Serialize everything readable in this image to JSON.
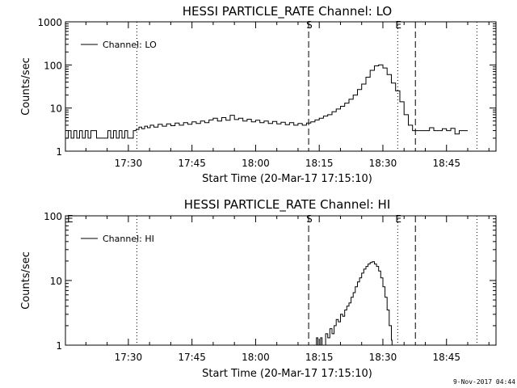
{
  "timestamp": "9-Nov-2017 04:44",
  "chart_data": [
    {
      "type": "line",
      "title": "HESSI PARTICLE_RATE Channel: LO",
      "ylabel": "Counts/sec",
      "xlabel": "Start Time (20-Mar-17 17:15:10)",
      "yscale": "log",
      "ylim": [
        1,
        1000
      ],
      "xlim": [
        "17:15:10",
        "18:56:40"
      ],
      "y_tick_labels": [
        "1",
        "10",
        "100",
        "1000"
      ],
      "x_tick_labels": [
        "17:30",
        "17:45",
        "18:00",
        "18:15",
        "18:30",
        "18:45"
      ],
      "legend": {
        "label": "Channel: LO",
        "placement": "top-left"
      },
      "grid": false,
      "markers": [
        {
          "time": "17:32:00",
          "style": "dotted",
          "label": ""
        },
        {
          "time": "18:12:30",
          "style": "dashed",
          "label": "S"
        },
        {
          "time": "18:33:30",
          "style": "dotted",
          "label": "E"
        },
        {
          "time": "18:37:40",
          "style": "dashed",
          "label": ""
        },
        {
          "time": "18:52:10",
          "style": "dotted",
          "label": ""
        }
      ],
      "series": [
        {
          "name": "Channel: LO",
          "points": [
            [
              "17:15:10",
              2.0
            ],
            [
              "17:15:50",
              3.0
            ],
            [
              "17:16:30",
              2.0
            ],
            [
              "17:17:10",
              3.0
            ],
            [
              "17:17:50",
              2.0
            ],
            [
              "17:18:30",
              3.0
            ],
            [
              "17:19:10",
              2.0
            ],
            [
              "17:19:50",
              3.0
            ],
            [
              "17:20:30",
              2.0
            ],
            [
              "17:21:10",
              3.0
            ],
            [
              "17:21:50",
              3.0
            ],
            [
              "17:22:30",
              2.0
            ],
            [
              "17:23:30",
              2.0
            ],
            [
              "17:24:30",
              2.0
            ],
            [
              "17:25:10",
              3.0
            ],
            [
              "17:25:50",
              2.0
            ],
            [
              "17:26:30",
              3.0
            ],
            [
              "17:27:10",
              2.0
            ],
            [
              "17:27:50",
              3.0
            ],
            [
              "17:28:30",
              2.0
            ],
            [
              "17:29:10",
              3.0
            ],
            [
              "17:29:50",
              2.0
            ],
            [
              "17:30:30",
              2.0
            ],
            [
              "17:31:10",
              3.0
            ],
            [
              "17:31:50",
              3.2
            ],
            [
              "17:32:30",
              3.6
            ],
            [
              "17:33:10",
              3.3
            ],
            [
              "17:33:50",
              3.8
            ],
            [
              "17:34:30",
              3.5
            ],
            [
              "17:35:10",
              4.0
            ],
            [
              "17:36:00",
              3.6
            ],
            [
              "17:37:00",
              4.2
            ],
            [
              "17:38:00",
              3.8
            ],
            [
              "17:39:00",
              4.3
            ],
            [
              "17:40:00",
              3.9
            ],
            [
              "17:41:00",
              4.5
            ],
            [
              "17:42:00",
              4.0
            ],
            [
              "17:43:00",
              4.6
            ],
            [
              "17:44:00",
              4.2
            ],
            [
              "17:45:00",
              4.8
            ],
            [
              "17:46:00",
              4.4
            ],
            [
              "17:47:00",
              5.0
            ],
            [
              "17:48:00",
              4.6
            ],
            [
              "17:49:00",
              5.3
            ],
            [
              "17:50:00",
              5.8
            ],
            [
              "17:51:00",
              5.0
            ],
            [
              "17:52:00",
              6.0
            ],
            [
              "17:53:00",
              5.2
            ],
            [
              "17:54:00",
              6.8
            ],
            [
              "17:55:00",
              5.4
            ],
            [
              "17:56:00",
              5.8
            ],
            [
              "17:57:00",
              5.0
            ],
            [
              "17:58:00",
              5.5
            ],
            [
              "17:59:00",
              4.8
            ],
            [
              "18:00:00",
              5.2
            ],
            [
              "18:01:00",
              4.6
            ],
            [
              "18:02:00",
              5.0
            ],
            [
              "18:03:00",
              4.4
            ],
            [
              "18:04:00",
              4.9
            ],
            [
              "18:05:00",
              4.3
            ],
            [
              "18:06:00",
              4.7
            ],
            [
              "18:07:00",
              4.1
            ],
            [
              "18:08:00",
              4.6
            ],
            [
              "18:09:00",
              4.0
            ],
            [
              "18:10:00",
              4.4
            ],
            [
              "18:11:00",
              4.0
            ],
            [
              "18:12:00",
              4.5
            ],
            [
              "18:13:00",
              4.8
            ],
            [
              "18:14:00",
              5.3
            ],
            [
              "18:15:00",
              5.8
            ],
            [
              "18:16:00",
              6.5
            ],
            [
              "18:17:00",
              7.0
            ],
            [
              "18:18:00",
              8.2
            ],
            [
              "18:19:00",
              9.5
            ],
            [
              "18:20:00",
              11.0
            ],
            [
              "18:21:00",
              13.0
            ],
            [
              "18:22:00",
              16.0
            ],
            [
              "18:23:00",
              20.0
            ],
            [
              "18:24:00",
              27.0
            ],
            [
              "18:25:00",
              36.0
            ],
            [
              "18:26:00",
              52.0
            ],
            [
              "18:27:00",
              75.0
            ],
            [
              "18:28:00",
              95.0
            ],
            [
              "18:29:00",
              100.0
            ],
            [
              "18:30:00",
              85.0
            ],
            [
              "18:31:00",
              60.0
            ],
            [
              "18:32:00",
              38.0
            ],
            [
              "18:33:00",
              25.0
            ],
            [
              "18:34:00",
              14.0
            ],
            [
              "18:35:00",
              7.0
            ],
            [
              "18:36:00",
              4.0
            ],
            [
              "18:37:00",
              3.0
            ],
            [
              "18:38:00",
              3.0
            ],
            [
              "18:39:00",
              3.0
            ],
            [
              "18:40:00",
              3.0
            ],
            [
              "18:41:00",
              3.5
            ],
            [
              "18:42:00",
              3.0
            ],
            [
              "18:43:00",
              3.0
            ],
            [
              "18:44:00",
              3.3
            ],
            [
              "18:45:00",
              3.0
            ],
            [
              "18:46:00",
              3.4
            ],
            [
              "18:47:00",
              2.5
            ],
            [
              "18:48:00",
              3.0
            ],
            [
              "18:49:00",
              3.0
            ],
            [
              "18:50:00",
              3.0
            ]
          ]
        }
      ]
    },
    {
      "type": "line",
      "title": "HESSI PARTICLE_RATE Channel: HI",
      "ylabel": "Counts/sec",
      "xlabel": "Start Time (20-Mar-17 17:15:10)",
      "yscale": "log",
      "ylim": [
        1,
        100
      ],
      "xlim": [
        "17:15:10",
        "18:56:40"
      ],
      "y_tick_labels": [
        "1",
        "10",
        "100"
      ],
      "x_tick_labels": [
        "17:30",
        "17:45",
        "18:00",
        "18:15",
        "18:30",
        "18:45"
      ],
      "legend": {
        "label": "Channel: HI",
        "placement": "top-left"
      },
      "grid": false,
      "markers": [
        {
          "time": "17:15:10",
          "style": "none",
          "label": "E"
        },
        {
          "time": "17:32:00",
          "style": "dotted",
          "label": ""
        },
        {
          "time": "18:12:30",
          "style": "dashed",
          "label": "S"
        },
        {
          "time": "18:33:30",
          "style": "dotted",
          "label": "E"
        },
        {
          "time": "18:37:40",
          "style": "dashed",
          "label": ""
        },
        {
          "time": "18:52:10",
          "style": "dotted",
          "label": ""
        }
      ],
      "series": [
        {
          "name": "Channel: HI",
          "points": [
            [
              "18:13:20",
              1.0
            ],
            [
              "18:14:10",
              1.0
            ],
            [
              "18:14:20",
              1.3
            ],
            [
              "18:14:40",
              1.0
            ],
            [
              "18:15:00",
              1.0
            ],
            [
              "18:15:20",
              1.3
            ],
            [
              "18:15:40",
              1.0
            ],
            [
              "18:16:00",
              1.0
            ],
            [
              "18:16:30",
              1.5
            ],
            [
              "18:17:00",
              1.3
            ],
            [
              "18:17:30",
              1.8
            ],
            [
              "18:18:00",
              1.5
            ],
            [
              "18:18:30",
              2.0
            ],
            [
              "18:19:00",
              2.5
            ],
            [
              "18:19:30",
              2.3
            ],
            [
              "18:20:00",
              3.0
            ],
            [
              "18:20:30",
              2.8
            ],
            [
              "18:21:00",
              3.5
            ],
            [
              "18:21:30",
              4.0
            ],
            [
              "18:22:00",
              4.5
            ],
            [
              "18:22:30",
              5.5
            ],
            [
              "18:23:00",
              6.5
            ],
            [
              "18:23:30",
              8.0
            ],
            [
              "18:24:00",
              9.5
            ],
            [
              "18:24:30",
              11.0
            ],
            [
              "18:25:00",
              13.0
            ],
            [
              "18:25:30",
              15.0
            ],
            [
              "18:26:00",
              16.5
            ],
            [
              "18:26:30",
              18.0
            ],
            [
              "18:27:00",
              19.0
            ],
            [
              "18:27:30",
              19.5
            ],
            [
              "18:28:00",
              18.0
            ],
            [
              "18:28:30",
              16.5
            ],
            [
              "18:29:00",
              14.0
            ],
            [
              "18:29:30",
              11.0
            ],
            [
              "18:30:00",
              8.0
            ],
            [
              "18:30:30",
              5.5
            ],
            [
              "18:31:00",
              3.5
            ],
            [
              "18:31:30",
              2.0
            ],
            [
              "18:32:00",
              1.2
            ],
            [
              "18:32:10",
              1.0
            ]
          ]
        }
      ]
    }
  ]
}
